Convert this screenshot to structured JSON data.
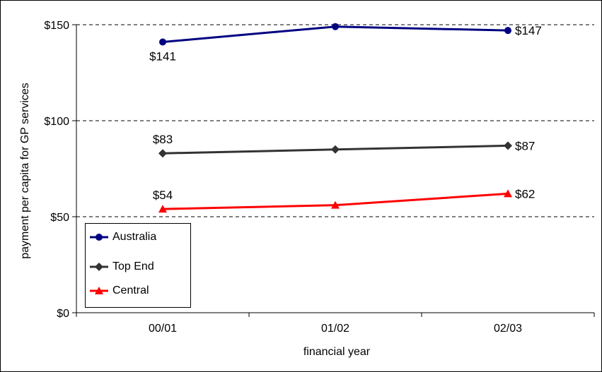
{
  "chart_data": {
    "type": "line",
    "xlabel": "financial year",
    "ylabel": "payment per capita for GP services",
    "categories": [
      "00/01",
      "01/02",
      "02/03"
    ],
    "ylim": [
      0,
      150
    ],
    "yticks": [
      0,
      50,
      100,
      150
    ],
    "ytick_labels": [
      "$0",
      "$50",
      "$100",
      "$150"
    ],
    "grid": "horizontal-dashed",
    "legend_position": "bottom-left",
    "series": [
      {
        "name": "Australia",
        "values": [
          141,
          149,
          147
        ],
        "color": "#000080",
        "marker": "circle",
        "labels": [
          "$141",
          "",
          "$147"
        ]
      },
      {
        "name": "Top End",
        "values": [
          83,
          85,
          87
        ],
        "color": "#333333",
        "marker": "diamond",
        "labels": [
          "$83",
          "",
          "$87"
        ]
      },
      {
        "name": "Central",
        "values": [
          54,
          56,
          62
        ],
        "color": "#ff0000",
        "marker": "triangle",
        "labels": [
          "$54",
          "",
          "$62"
        ]
      }
    ]
  }
}
